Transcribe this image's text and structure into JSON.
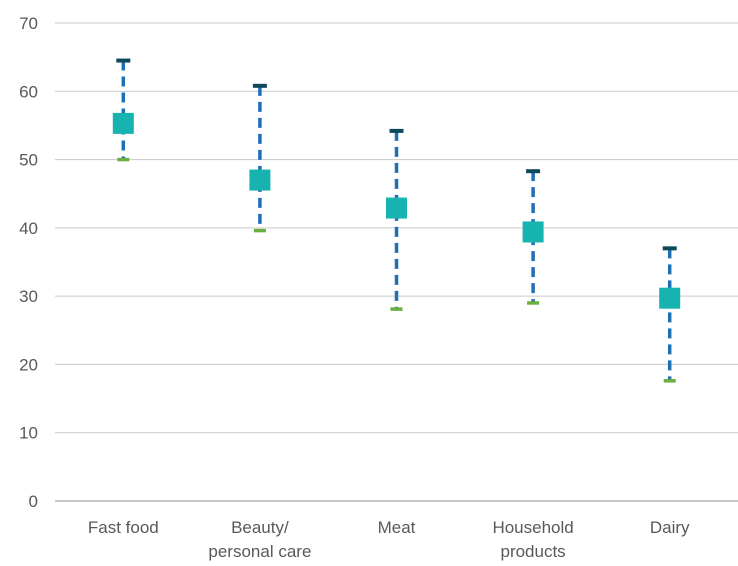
{
  "chart_data": {
    "type": "scatter",
    "subtype": "range-with-marker",
    "title": "",
    "xlabel": "",
    "ylabel": "",
    "ylim": [
      0,
      70
    ],
    "yticks": [
      0,
      10,
      20,
      30,
      40,
      50,
      60,
      70
    ],
    "ytick_labels": [
      "0",
      "10",
      "20",
      "30",
      "40",
      "50",
      "60",
      "70"
    ],
    "grid": true,
    "legend": "none",
    "categories": [
      [
        "Fast food"
      ],
      [
        "Beauty/",
        "personal care"
      ],
      [
        "Meat"
      ],
      [
        "Household",
        "products"
      ],
      [
        "Dairy"
      ]
    ],
    "series": [
      {
        "role": "high",
        "values": [
          64.5,
          60.8,
          54.2,
          48.3,
          37.0
        ]
      },
      {
        "role": "mid",
        "values": [
          55.3,
          47.0,
          42.9,
          39.4,
          29.7
        ]
      },
      {
        "role": "low",
        "values": [
          50.0,
          39.6,
          28.1,
          29.0,
          17.6
        ]
      }
    ],
    "colors": {
      "marker": "#17B3B0",
      "range_line": "#1F6FB5",
      "high_cap": "#0C4A5A",
      "low_cap": "#6AAE3E",
      "grid": "#C9C9C9",
      "axis": "#8C8C8C",
      "text": "#595959"
    }
  }
}
